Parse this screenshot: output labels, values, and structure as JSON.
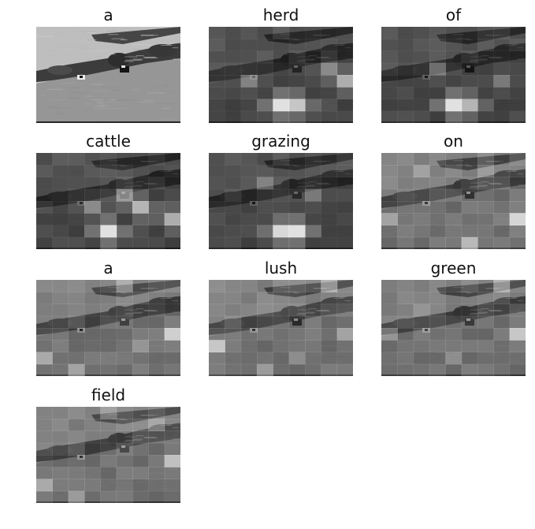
{
  "figure": {
    "panels": [
      {
        "word": "a",
        "variant": "base",
        "peaks": []
      },
      {
        "word": "herd",
        "variant": "dark",
        "peaks": [
          [
            4,
            6,
            1.0
          ],
          [
            5,
            6,
            0.85
          ],
          [
            8,
            4,
            0.7
          ],
          [
            7,
            3,
            0.5
          ],
          [
            2,
            4,
            0.45
          ]
        ]
      },
      {
        "word": "of",
        "variant": "dark",
        "peaks": [
          [
            4,
            6,
            1.0
          ],
          [
            5,
            6,
            0.75
          ],
          [
            3,
            3,
            0.45
          ],
          [
            7,
            4,
            0.4
          ]
        ]
      },
      {
        "word": "cattle",
        "variant": "dark",
        "peaks": [
          [
            4,
            6,
            1.0
          ],
          [
            6,
            4,
            0.75
          ],
          [
            8,
            5,
            0.7
          ],
          [
            5,
            3,
            0.6
          ],
          [
            3,
            4,
            0.5
          ]
        ]
      },
      {
        "word": "grazing",
        "variant": "dark",
        "peaks": [
          [
            4,
            6,
            0.95
          ],
          [
            5,
            6,
            1.0
          ],
          [
            3,
            2,
            0.4
          ],
          [
            6,
            3,
            0.4
          ]
        ]
      },
      {
        "word": "on",
        "variant": "light",
        "peaks": [
          [
            8,
            5,
            0.9
          ],
          [
            5,
            7,
            0.7
          ],
          [
            0,
            5,
            0.55
          ],
          [
            2,
            1,
            0.45
          ],
          [
            6,
            1,
            0.4
          ]
        ]
      },
      {
        "word": "a",
        "variant": "light",
        "peaks": [
          [
            8,
            4,
            0.85
          ],
          [
            0,
            6,
            0.6
          ],
          [
            2,
            7,
            0.55
          ],
          [
            5,
            0,
            0.55
          ],
          [
            6,
            5,
            0.45
          ]
        ]
      },
      {
        "word": "lush",
        "variant": "light",
        "peaks": [
          [
            0,
            5,
            0.8
          ],
          [
            7,
            0,
            0.6
          ],
          [
            8,
            4,
            0.55
          ],
          [
            3,
            7,
            0.5
          ],
          [
            5,
            6,
            0.4
          ]
        ]
      },
      {
        "word": "green",
        "variant": "light",
        "peaks": [
          [
            8,
            4,
            0.8
          ],
          [
            7,
            0,
            0.6
          ],
          [
            0,
            4,
            0.45
          ],
          [
            4,
            6,
            0.4
          ],
          [
            2,
            2,
            0.35
          ]
        ]
      },
      {
        "word": "field",
        "variant": "light",
        "peaks": [
          [
            8,
            4,
            0.75
          ],
          [
            0,
            6,
            0.6
          ],
          [
            2,
            7,
            0.5
          ],
          [
            7,
            1,
            0.5
          ],
          [
            4,
            0,
            0.45
          ]
        ]
      }
    ]
  }
}
